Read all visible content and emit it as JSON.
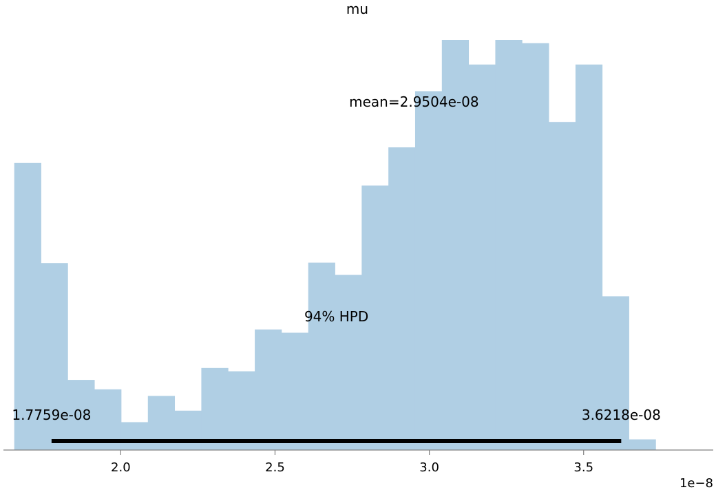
{
  "chart_data": {
    "type": "bar",
    "title": "mu",
    "xlabel": "",
    "ylabel": "",
    "x_offset_label": "1e−8",
    "x_unit_scale": 1e-08,
    "xlim": [
      1.62,
      3.92
    ],
    "ylim": [
      0,
      1.0
    ],
    "bin_start": 1.655,
    "bin_width": 0.0866,
    "values": [
      0.7,
      0.456,
      0.171,
      0.148,
      0.068,
      0.132,
      0.096,
      0.2,
      0.192,
      0.294,
      0.286,
      0.457,
      0.427,
      0.645,
      0.738,
      0.875,
      1.0,
      0.94,
      1.0,
      0.992,
      0.8,
      0.94,
      0.375,
      0.026
    ],
    "x_ticks": [
      2.0,
      2.5,
      3.0,
      3.5
    ],
    "x_tick_labels": [
      "2.0",
      "2.5",
      "3.0",
      "3.5"
    ],
    "mean": {
      "value": 2.9504,
      "label": "mean=2.9504e-08"
    },
    "hpd": {
      "label": "94% HPD",
      "low": 1.7759,
      "high": 3.6218,
      "low_label": "1.7759e-08",
      "high_label": "3.6218e-08"
    },
    "grid": false,
    "legend": "none",
    "colors": {
      "bars": "#b0cfe4",
      "hpd_line": "#000000",
      "axis": "#808080",
      "text": "#000000"
    }
  }
}
